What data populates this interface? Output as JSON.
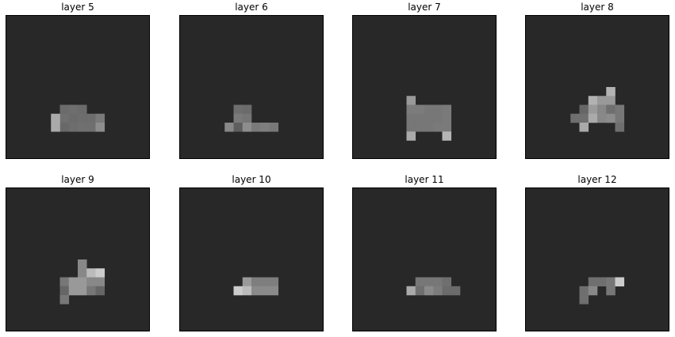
{
  "figure": {
    "background_color": "#282828",
    "grid_size": 16,
    "panels": [
      {
        "title": "layer 5",
        "cells": [
          [
            6,
            10,
            "#6b6b6b"
          ],
          [
            7,
            10,
            "#6e6e6e"
          ],
          [
            8,
            10,
            "#6b6b6b"
          ],
          [
            6,
            11,
            "#6f6f6f"
          ],
          [
            7,
            11,
            "#6b6b6b"
          ],
          [
            8,
            11,
            "#6d6d6d"
          ],
          [
            6,
            12,
            "#686868"
          ],
          [
            7,
            12,
            "#6d6d6d"
          ],
          [
            8,
            12,
            "#707070"
          ],
          [
            9,
            11,
            "#6d6d6d"
          ],
          [
            9,
            12,
            "#6f6f6f"
          ],
          [
            10,
            11,
            "#7a7a7a"
          ],
          [
            10,
            12,
            "#8d8d8d"
          ],
          [
            5,
            11,
            "#aaaaaa"
          ],
          [
            5,
            12,
            "#aaaaaa"
          ]
        ]
      },
      {
        "title": "layer 6",
        "cells": [
          [
            6,
            10,
            "#6e6e6e"
          ],
          [
            7,
            10,
            "#6b6b6b"
          ],
          [
            6,
            11,
            "#7a7a7a"
          ],
          [
            7,
            11,
            "#757575"
          ],
          [
            5,
            12,
            "#888888"
          ],
          [
            6,
            12,
            "#5e5e5e"
          ],
          [
            7,
            12,
            "#8d8d8d"
          ],
          [
            8,
            12,
            "#7a7a7a"
          ],
          [
            9,
            12,
            "#7e7e7e"
          ],
          [
            10,
            12,
            "#787878"
          ]
        ]
      },
      {
        "title": "layer 7",
        "cells": [
          [
            6,
            9,
            "#999999"
          ],
          [
            6,
            10,
            "#7c7c7c"
          ],
          [
            7,
            10,
            "#7c7c7c"
          ],
          [
            8,
            10,
            "#777777"
          ],
          [
            9,
            10,
            "#777777"
          ],
          [
            10,
            10,
            "#7a7a7a"
          ],
          [
            6,
            11,
            "#777777"
          ],
          [
            7,
            11,
            "#777777"
          ],
          [
            8,
            11,
            "#777777"
          ],
          [
            9,
            11,
            "#777777"
          ],
          [
            10,
            11,
            "#7a7a7a"
          ],
          [
            6,
            12,
            "#777777"
          ],
          [
            7,
            12,
            "#777777"
          ],
          [
            8,
            12,
            "#777777"
          ],
          [
            9,
            12,
            "#7a7a7a"
          ],
          [
            10,
            12,
            "#7a7a7a"
          ],
          [
            6,
            13,
            "#aaaaaa"
          ],
          [
            10,
            13,
            "#b5b5b5"
          ]
        ]
      },
      {
        "title": "layer 8",
        "cells": [
          [
            9,
            8,
            "#b2b2b2"
          ],
          [
            7,
            9,
            "#b2b2b2"
          ],
          [
            8,
            9,
            "#999999"
          ],
          [
            9,
            9,
            "#999999"
          ],
          [
            6,
            10,
            "#666666"
          ],
          [
            7,
            10,
            "#9a9a9a"
          ],
          [
            8,
            10,
            "#878787"
          ],
          [
            9,
            10,
            "#6f6f6f"
          ],
          [
            10,
            10,
            "#777777"
          ],
          [
            5,
            11,
            "#6f6f6f"
          ],
          [
            6,
            11,
            "#6f6f6f"
          ],
          [
            7,
            11,
            "#aaaaaa"
          ],
          [
            8,
            11,
            "#888888"
          ],
          [
            9,
            11,
            "#8c8c8c"
          ],
          [
            10,
            11,
            "#777777"
          ],
          [
            6,
            12,
            "#aaaaaa"
          ],
          [
            10,
            12,
            "#6f6f6f"
          ]
        ]
      },
      {
        "title": "layer 9",
        "cells": [
          [
            8,
            8,
            "#888888"
          ],
          [
            8,
            9,
            "#888888"
          ],
          [
            9,
            9,
            "#bbbbbb"
          ],
          [
            10,
            9,
            "#cccccc"
          ],
          [
            6,
            10,
            "#777777"
          ],
          [
            7,
            10,
            "#999999"
          ],
          [
            8,
            10,
            "#999999"
          ],
          [
            9,
            10,
            "#888888"
          ],
          [
            10,
            10,
            "#888888"
          ],
          [
            6,
            11,
            "#666666"
          ],
          [
            7,
            11,
            "#999999"
          ],
          [
            8,
            11,
            "#999999"
          ],
          [
            9,
            11,
            "#777777"
          ],
          [
            10,
            11,
            "#666666"
          ],
          [
            6,
            12,
            "#777777"
          ]
        ]
      },
      {
        "title": "layer 10",
        "cells": [
          [
            7,
            10,
            "#9a9a9a"
          ],
          [
            8,
            10,
            "#7e7e7e"
          ],
          [
            9,
            10,
            "#7e7e7e"
          ],
          [
            10,
            10,
            "#7e7e7e"
          ],
          [
            6,
            11,
            "#cccccc"
          ],
          [
            7,
            11,
            "#bbbbbb"
          ],
          [
            8,
            11,
            "#8a8a8a"
          ],
          [
            9,
            11,
            "#8a8a8a"
          ],
          [
            10,
            11,
            "#8a8a8a"
          ]
        ]
      },
      {
        "title": "layer 11",
        "cells": [
          [
            7,
            10,
            "#777777"
          ],
          [
            8,
            10,
            "#777777"
          ],
          [
            9,
            10,
            "#777777"
          ],
          [
            10,
            10,
            "#6f6f6f"
          ],
          [
            6,
            11,
            "#aaaaaa"
          ],
          [
            7,
            11,
            "#6f6f6f"
          ],
          [
            8,
            11,
            "#8a8a8a"
          ],
          [
            9,
            11,
            "#7c7c7c"
          ],
          [
            10,
            11,
            "#6b6b6b"
          ],
          [
            11,
            11,
            "#6b6b6b"
          ]
        ]
      },
      {
        "title": "layer 12",
        "cells": [
          [
            7,
            10,
            "#6f6f6f"
          ],
          [
            8,
            10,
            "#6f6f6f"
          ],
          [
            9,
            10,
            "#777777"
          ],
          [
            10,
            10,
            "#cccccc"
          ],
          [
            6,
            11,
            "#6f6f6f"
          ],
          [
            7,
            11,
            "#888888"
          ],
          [
            9,
            11,
            "#777777"
          ],
          [
            6,
            12,
            "#6f6f6f"
          ]
        ]
      }
    ]
  }
}
